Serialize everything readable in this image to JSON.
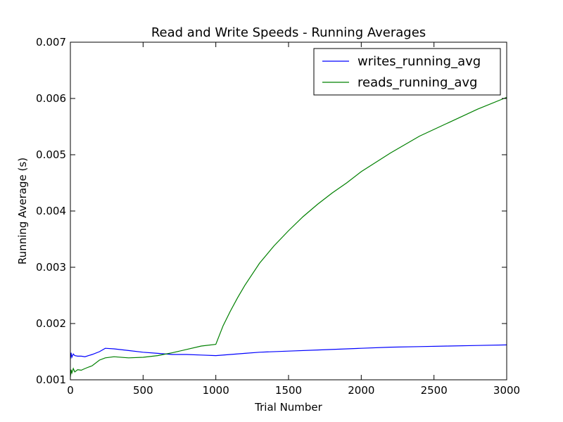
{
  "chart_data": {
    "type": "line",
    "title": "Read and Write Speeds - Running Averages",
    "xlabel": "Trial Number",
    "ylabel": "Running Average (s)",
    "xlim": [
      0,
      3000
    ],
    "ylim": [
      0.001,
      0.007
    ],
    "xticks": [
      0,
      500,
      1000,
      1500,
      2000,
      2500,
      3000
    ],
    "xtick_labels": [
      "0",
      "500",
      "1000",
      "1500",
      "2000",
      "2500",
      "3000"
    ],
    "yticks": [
      0.001,
      0.002,
      0.003,
      0.004,
      0.005,
      0.006,
      0.007
    ],
    "ytick_labels": [
      "0.001",
      "0.002",
      "0.003",
      "0.004",
      "0.005",
      "0.006",
      "0.007"
    ],
    "grid": false,
    "legend": "upper-right",
    "series": [
      {
        "name": "writes_running_avg",
        "color": "#0000ff",
        "x": [
          0,
          5,
          10,
          20,
          30,
          50,
          75,
          100,
          150,
          200,
          240,
          300,
          400,
          500,
          600,
          700,
          800,
          900,
          1000,
          1100,
          1200,
          1300,
          1500,
          1700,
          2000,
          2200,
          2400,
          2600,
          2800,
          3000
        ],
        "y": [
          0.00137,
          0.00148,
          0.0014,
          0.00146,
          0.00143,
          0.00142,
          0.00142,
          0.00141,
          0.00145,
          0.0015,
          0.00156,
          0.00155,
          0.00152,
          0.00149,
          0.00147,
          0.00145,
          0.00145,
          0.00144,
          0.00143,
          0.00145,
          0.00147,
          0.00149,
          0.00151,
          0.00153,
          0.00156,
          0.00158,
          0.00159,
          0.0016,
          0.00161,
          0.00162
        ]
      },
      {
        "name": "reads_running_avg",
        "color": "#008000",
        "x": [
          0,
          5,
          10,
          20,
          30,
          50,
          75,
          100,
          150,
          200,
          240,
          300,
          400,
          500,
          600,
          700,
          800,
          900,
          1000,
          1050,
          1100,
          1150,
          1200,
          1300,
          1400,
          1500,
          1600,
          1700,
          1800,
          1900,
          2000,
          2200,
          2400,
          2600,
          2800,
          3000
        ],
        "y": [
          0.00105,
          0.00118,
          0.00112,
          0.0012,
          0.00114,
          0.00118,
          0.00117,
          0.0012,
          0.00125,
          0.00135,
          0.00139,
          0.00141,
          0.00139,
          0.0014,
          0.00143,
          0.00148,
          0.00154,
          0.0016,
          0.00163,
          0.00196,
          0.00222,
          0.00246,
          0.00268,
          0.00307,
          0.00338,
          0.00365,
          0.0039,
          0.00412,
          0.00432,
          0.0045,
          0.0047,
          0.00503,
          0.00533,
          0.00557,
          0.00581,
          0.00602
        ]
      }
    ]
  }
}
